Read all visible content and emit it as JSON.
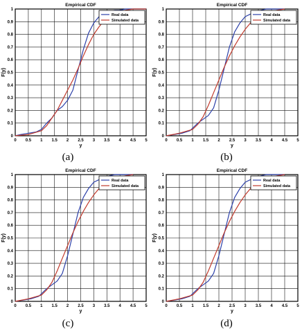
{
  "chart_data": [
    {
      "type": "line",
      "panel_label": "(a)",
      "title": "Empirical CDF",
      "xlabel": "y",
      "ylabel": "F(y)",
      "xlim": [
        0,
        5
      ],
      "ylim": [
        0,
        1
      ],
      "xticks": [
        "0",
        "0.5",
        "1",
        "1.5",
        "2",
        "2.5",
        "3",
        "3.5",
        "4",
        "4.5",
        "5"
      ],
      "yticks": [
        "0",
        "0.1",
        "0.2",
        "0.3",
        "0.4",
        "0.5",
        "0.6",
        "0.7",
        "0.8",
        "0.9",
        "1"
      ],
      "grid": true,
      "legend_position": "top-right",
      "colors": {
        "real": "#2b3fa8",
        "sim": "#c0392b"
      },
      "series": [
        {
          "name": "Real data",
          "key": "real",
          "x": [
            0,
            0.2,
            0.5,
            0.8,
            1.0,
            1.2,
            1.4,
            1.6,
            1.8,
            2.0,
            2.2,
            2.4,
            2.6,
            2.8,
            3.0,
            3.2,
            3.4,
            3.6,
            3.8,
            4.0,
            4.2,
            4.5,
            4.8,
            5.0
          ],
          "y": [
            0,
            0.01,
            0.02,
            0.03,
            0.05,
            0.1,
            0.14,
            0.2,
            0.23,
            0.28,
            0.36,
            0.52,
            0.68,
            0.81,
            0.89,
            0.94,
            0.96,
            0.98,
            0.99,
            0.99,
            1.0,
            1.0,
            1.0,
            1.0
          ]
        },
        {
          "name": "Simulated data",
          "key": "sim",
          "x": [
            0,
            0.5,
            1.0,
            1.2,
            1.4,
            1.6,
            1.8,
            2.0,
            2.2,
            2.4,
            2.6,
            2.8,
            3.0,
            3.2,
            3.4,
            3.6,
            3.8,
            4.0,
            4.2,
            4.5,
            5.0
          ],
          "y": [
            0,
            0.01,
            0.04,
            0.08,
            0.14,
            0.2,
            0.28,
            0.36,
            0.44,
            0.53,
            0.63,
            0.72,
            0.8,
            0.86,
            0.91,
            0.94,
            0.96,
            0.98,
            0.99,
            1.0,
            1.0
          ]
        }
      ]
    },
    {
      "type": "line",
      "panel_label": "(b)",
      "title": "Empirical CDF",
      "xlabel": "y",
      "ylabel": "F(y)",
      "xlim": [
        0,
        5
      ],
      "ylim": [
        0,
        1
      ],
      "xticks": [
        "0",
        "0.5",
        "1",
        "1.5",
        "2",
        "2.5",
        "3",
        "3.5",
        "4",
        "4.5",
        "5"
      ],
      "yticks": [
        "0",
        "0.1",
        "0.2",
        "0.3",
        "0.4",
        "0.5",
        "0.6",
        "0.7",
        "0.8",
        "0.9",
        "1"
      ],
      "grid": true,
      "legend_position": "top-right",
      "colors": {
        "real": "#2b3fa8",
        "sim": "#c0392b"
      },
      "series": [
        {
          "name": "Real data",
          "key": "real",
          "x": [
            0,
            0.3,
            0.6,
            0.9,
            1.0,
            1.2,
            1.4,
            1.6,
            1.8,
            2.0,
            2.2,
            2.4,
            2.6,
            2.8,
            3.0,
            3.2,
            3.4,
            3.6,
            3.8,
            4.0,
            4.2,
            4.5
          ],
          "y": [
            0,
            0.01,
            0.02,
            0.04,
            0.06,
            0.1,
            0.13,
            0.16,
            0.22,
            0.36,
            0.53,
            0.7,
            0.82,
            0.89,
            0.94,
            0.96,
            0.98,
            0.99,
            1.0,
            1.0,
            1.0,
            1.0
          ]
        },
        {
          "name": "Simulated data",
          "key": "sim",
          "x": [
            0,
            0.5,
            1.0,
            1.2,
            1.4,
            1.6,
            1.8,
            2.0,
            2.2,
            2.4,
            2.6,
            2.8,
            3.0,
            3.2,
            3.4,
            3.6,
            3.8,
            4.0,
            4.2,
            4.5
          ],
          "y": [
            0,
            0.02,
            0.05,
            0.09,
            0.15,
            0.24,
            0.34,
            0.44,
            0.54,
            0.63,
            0.71,
            0.78,
            0.84,
            0.89,
            0.93,
            0.95,
            0.97,
            0.98,
            0.99,
            1.0
          ]
        }
      ]
    },
    {
      "type": "line",
      "panel_label": "(c)",
      "title": "Empirical CDF",
      "xlabel": "y",
      "ylabel": "F(y)",
      "xlim": [
        0,
        5
      ],
      "ylim": [
        0,
        1
      ],
      "xticks": [
        "0",
        "0.5",
        "1",
        "1.5",
        "2",
        "2.5",
        "3",
        "3.5",
        "4",
        "4.5",
        "5"
      ],
      "yticks": [
        "0",
        "0.1",
        "0.2",
        "0.3",
        "0.4",
        "0.5",
        "0.6",
        "0.7",
        "0.8",
        "0.9",
        "1"
      ],
      "grid": true,
      "legend_position": "top-right",
      "colors": {
        "real": "#2b3fa8",
        "sim": "#c0392b"
      },
      "series": [
        {
          "name": "Real data",
          "key": "real",
          "x": [
            0,
            0.3,
            0.6,
            0.9,
            1.0,
            1.2,
            1.4,
            1.6,
            1.8,
            2.0,
            2.2,
            2.4,
            2.6,
            2.8,
            3.0,
            3.2,
            3.4,
            3.6,
            3.8,
            4.0,
            4.2,
            4.5
          ],
          "y": [
            0,
            0.01,
            0.02,
            0.04,
            0.06,
            0.1,
            0.13,
            0.16,
            0.22,
            0.36,
            0.53,
            0.7,
            0.82,
            0.89,
            0.94,
            0.96,
            0.98,
            0.99,
            1.0,
            1.0,
            1.0,
            1.0
          ]
        },
        {
          "name": "Simulated data",
          "key": "sim",
          "x": [
            0,
            0.5,
            1.0,
            1.2,
            1.4,
            1.6,
            1.8,
            2.0,
            2.2,
            2.4,
            2.6,
            2.8,
            3.0,
            3.2,
            3.4,
            3.6,
            3.8,
            4.0,
            4.2,
            4.5
          ],
          "y": [
            0,
            0.02,
            0.05,
            0.09,
            0.15,
            0.24,
            0.34,
            0.44,
            0.54,
            0.63,
            0.71,
            0.78,
            0.84,
            0.89,
            0.93,
            0.95,
            0.97,
            0.98,
            0.99,
            1.0
          ]
        }
      ]
    },
    {
      "type": "line",
      "panel_label": "(d)",
      "title": "Empirical CDF",
      "xlabel": "y",
      "ylabel": "F(y)",
      "xlim": [
        0,
        5
      ],
      "ylim": [
        0,
        1
      ],
      "xticks": [
        "0",
        "0.5",
        "1",
        "1.5",
        "2",
        "2.5",
        "3",
        "3.5",
        "4",
        "4.5",
        "5"
      ],
      "yticks": [
        "0",
        "0.1",
        "0.2",
        "0.3",
        "0.4",
        "0.5",
        "0.6",
        "0.7",
        "0.8",
        "0.9",
        "1"
      ],
      "grid": true,
      "legend_position": "top-right",
      "colors": {
        "real": "#2b3fa8",
        "sim": "#c0392b"
      },
      "series": [
        {
          "name": "Real data",
          "key": "real",
          "x": [
            0,
            0.3,
            0.6,
            0.9,
            1.0,
            1.2,
            1.4,
            1.6,
            1.8,
            2.0,
            2.2,
            2.4,
            2.6,
            2.8,
            3.0,
            3.2,
            3.4,
            3.6,
            3.8,
            4.0,
            4.2,
            4.5
          ],
          "y": [
            0,
            0.01,
            0.02,
            0.04,
            0.06,
            0.1,
            0.13,
            0.16,
            0.22,
            0.36,
            0.53,
            0.7,
            0.82,
            0.89,
            0.94,
            0.96,
            0.98,
            0.99,
            1.0,
            1.0,
            1.0,
            1.0
          ]
        },
        {
          "name": "Simulated data",
          "key": "sim",
          "x": [
            0,
            0.5,
            1.0,
            1.2,
            1.4,
            1.6,
            1.8,
            2.0,
            2.2,
            2.4,
            2.6,
            2.8,
            3.0,
            3.2,
            3.4,
            3.6,
            3.8,
            4.0,
            4.2,
            4.5
          ],
          "y": [
            0,
            0.02,
            0.05,
            0.09,
            0.15,
            0.24,
            0.34,
            0.44,
            0.54,
            0.63,
            0.71,
            0.78,
            0.84,
            0.89,
            0.93,
            0.95,
            0.97,
            0.98,
            0.99,
            1.0
          ]
        }
      ]
    }
  ]
}
